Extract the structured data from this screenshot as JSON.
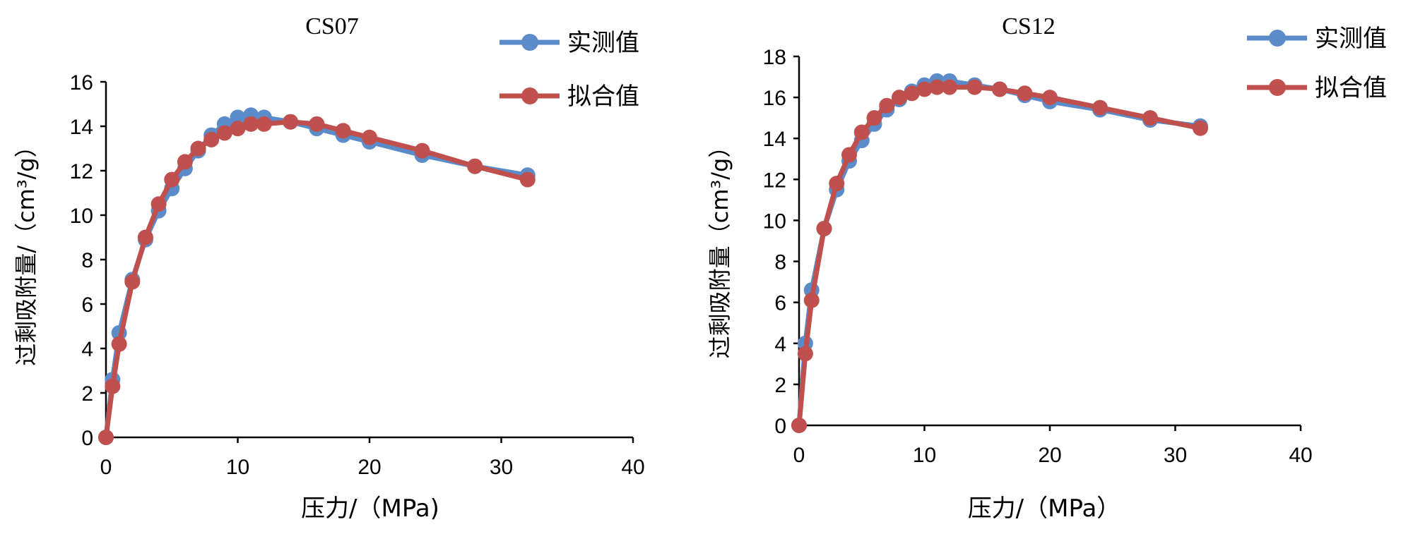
{
  "chart_data": [
    {
      "type": "line",
      "title": "CS07",
      "xlabel": "压力/（MPa)",
      "ylabel": "过剩吸附量/（cm³/g）",
      "xlim": [
        0,
        40
      ],
      "ylim": [
        0,
        16
      ],
      "xticks": [
        "0",
        "10",
        "20",
        "30",
        "40"
      ],
      "yticks": [
        "0",
        "2",
        "4",
        "6",
        "8",
        "10",
        "12",
        "14",
        "16"
      ],
      "series": [
        {
          "name": "实测值",
          "color": "#5B8BC9",
          "x": [
            0,
            0.5,
            1,
            2,
            3,
            4,
            5,
            6,
            7,
            8,
            9,
            10,
            11,
            12,
            14,
            16,
            18,
            20,
            24,
            28,
            32
          ],
          "y": [
            0,
            2.6,
            4.7,
            7.1,
            8.9,
            10.2,
            11.2,
            12.1,
            12.9,
            13.6,
            14.1,
            14.4,
            14.5,
            14.4,
            14.2,
            13.9,
            13.6,
            13.3,
            12.7,
            12.2,
            11.8
          ]
        },
        {
          "name": "拟合值",
          "color": "#C0504D",
          "x": [
            0,
            0.5,
            1,
            2,
            3,
            4,
            5,
            6,
            7,
            8,
            9,
            10,
            11,
            12,
            14,
            16,
            18,
            20,
            24,
            28,
            32
          ],
          "y": [
            0,
            2.3,
            4.2,
            7.0,
            9.0,
            10.5,
            11.6,
            12.4,
            13.0,
            13.4,
            13.7,
            13.9,
            14.1,
            14.1,
            14.2,
            14.1,
            13.8,
            13.5,
            12.9,
            12.2,
            11.6
          ]
        }
      ]
    },
    {
      "type": "line",
      "title": "CS12",
      "xlabel": "压力/（MPa）",
      "ylabel": "过剩吸附量（cm³/g）",
      "xlim": [
        0,
        40
      ],
      "ylim": [
        0,
        18
      ],
      "xticks": [
        "0",
        "10",
        "20",
        "30",
        "40"
      ],
      "yticks": [
        "0",
        "2",
        "4",
        "6",
        "8",
        "10",
        "12",
        "14",
        "16",
        "18"
      ],
      "series": [
        {
          "name": "实测值",
          "color": "#5B8BC9",
          "x": [
            0,
            0.5,
            1,
            2,
            3,
            4,
            5,
            6,
            7,
            8,
            9,
            10,
            11,
            12,
            14,
            16,
            18,
            20,
            24,
            28,
            32
          ],
          "y": [
            0,
            4.0,
            6.6,
            9.6,
            11.5,
            12.9,
            13.9,
            14.7,
            15.4,
            15.9,
            16.3,
            16.6,
            16.8,
            16.8,
            16.6,
            16.4,
            16.1,
            15.8,
            15.4,
            14.9,
            14.6
          ]
        },
        {
          "name": "拟合值",
          "color": "#C0504D",
          "x": [
            0,
            0.5,
            1,
            2,
            3,
            4,
            5,
            6,
            7,
            8,
            9,
            10,
            11,
            12,
            14,
            16,
            18,
            20,
            24,
            28,
            32
          ],
          "y": [
            0,
            3.5,
            6.1,
            9.6,
            11.8,
            13.2,
            14.3,
            15.0,
            15.6,
            16.0,
            16.2,
            16.4,
            16.5,
            16.5,
            16.5,
            16.4,
            16.2,
            16.0,
            15.5,
            15.0,
            14.5
          ]
        }
      ]
    }
  ]
}
